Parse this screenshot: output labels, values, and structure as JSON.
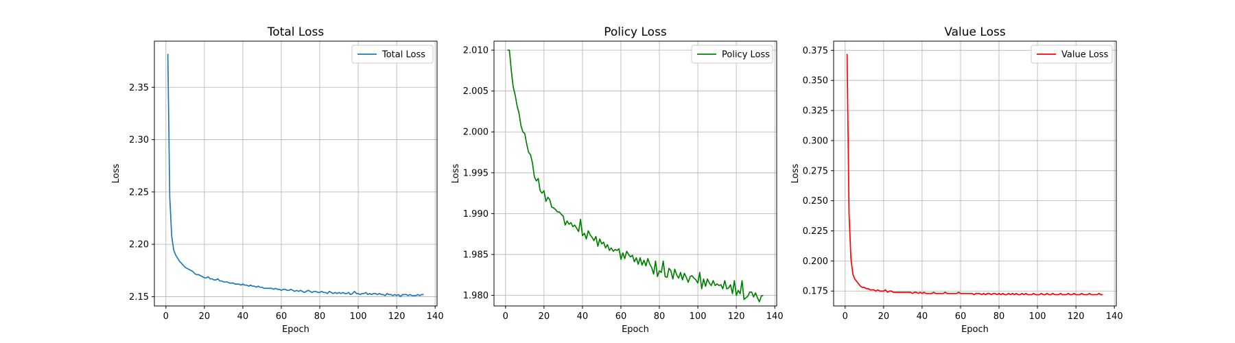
{
  "chart_data": [
    {
      "type": "line",
      "title": "Total Loss",
      "xlabel": "Epoch",
      "ylabel": "Loss",
      "xlim": [
        -6,
        141
      ],
      "ylim": [
        2.1411,
        2.3941
      ],
      "xticks": [
        0,
        20,
        40,
        60,
        80,
        100,
        120,
        140
      ],
      "yticks": [
        2.15,
        2.2,
        2.25,
        2.3,
        2.35
      ],
      "ytick_format": 2,
      "grid": true,
      "legend": "top-right",
      "series": [
        {
          "name": "Total Loss",
          "color": "#1f77b4",
          "x": [
            1,
            2,
            3,
            4,
            5,
            6,
            7,
            8,
            9,
            10,
            11,
            12,
            13,
            14,
            15,
            16,
            17,
            18,
            19,
            20,
            21,
            22,
            23,
            24,
            25,
            26,
            27,
            28,
            29,
            30,
            31,
            32,
            33,
            34,
            35,
            36,
            37,
            38,
            39,
            40,
            41,
            42,
            43,
            44,
            45,
            46,
            47,
            48,
            49,
            50,
            51,
            52,
            53,
            54,
            55,
            56,
            57,
            58,
            59,
            60,
            61,
            62,
            63,
            64,
            65,
            66,
            67,
            68,
            69,
            70,
            71,
            72,
            73,
            74,
            75,
            76,
            77,
            78,
            79,
            80,
            81,
            82,
            83,
            84,
            85,
            86,
            87,
            88,
            89,
            90,
            91,
            92,
            93,
            94,
            95,
            96,
            97,
            98,
            99,
            100,
            101,
            102,
            103,
            104,
            105,
            106,
            107,
            108,
            109,
            110,
            111,
            112,
            113,
            114,
            115,
            116,
            117,
            118,
            119,
            120,
            121,
            122,
            123,
            124,
            125,
            126,
            127,
            128,
            129,
            130,
            131,
            132,
            133,
            134
          ],
          "y": [
            2.382,
            2.245,
            2.208,
            2.195,
            2.19,
            2.187,
            2.184,
            2.182,
            2.18,
            2.178,
            2.177,
            2.176,
            2.175,
            2.174,
            2.172,
            2.171,
            2.171,
            2.17,
            2.169,
            2.168,
            2.168,
            2.169,
            2.167,
            2.167,
            2.166,
            2.166,
            2.167,
            2.165,
            2.165,
            2.164,
            2.164,
            2.164,
            2.163,
            2.163,
            2.163,
            2.162,
            2.162,
            2.162,
            2.161,
            2.162,
            2.161,
            2.161,
            2.16,
            2.161,
            2.16,
            2.16,
            2.159,
            2.16,
            2.159,
            2.159,
            2.158,
            2.158,
            2.158,
            2.158,
            2.158,
            2.157,
            2.158,
            2.157,
            2.157,
            2.156,
            2.157,
            2.157,
            2.156,
            2.156,
            2.157,
            2.156,
            2.155,
            2.156,
            2.155,
            2.156,
            2.155,
            2.154,
            2.155,
            2.156,
            2.155,
            2.154,
            2.155,
            2.155,
            2.154,
            2.154,
            2.155,
            2.154,
            2.154,
            2.153,
            2.155,
            2.154,
            2.153,
            2.154,
            2.153,
            2.154,
            2.153,
            2.154,
            2.153,
            2.153,
            2.154,
            2.152,
            2.153,
            2.155,
            2.153,
            2.153,
            2.152,
            2.153,
            2.153,
            2.154,
            2.152,
            2.153,
            2.152,
            2.153,
            2.153,
            2.152,
            2.153,
            2.152,
            2.152,
            2.151,
            2.153,
            2.152,
            2.152,
            2.151,
            2.152,
            2.151,
            2.152,
            2.15,
            2.152,
            2.152,
            2.152,
            2.151,
            2.152,
            2.151,
            2.151,
            2.151,
            2.152,
            2.151,
            2.152,
            2.152
          ]
        }
      ]
    },
    {
      "type": "line",
      "title": "Policy Loss",
      "xlabel": "Epoch",
      "ylabel": "Loss",
      "xlim": [
        -6,
        141
      ],
      "ylim": [
        1.9787,
        2.0111
      ],
      "xticks": [
        0,
        20,
        40,
        60,
        80,
        100,
        120,
        140
      ],
      "yticks": [
        1.98,
        1.985,
        1.99,
        1.995,
        2.0,
        2.005,
        2.01
      ],
      "ytick_format": 3,
      "grid": true,
      "legend": "top-right",
      "series": [
        {
          "name": "Policy Loss",
          "color": "#008000",
          "x": [
            1,
            2,
            3,
            4,
            5,
            6,
            7,
            8,
            9,
            10,
            11,
            12,
            13,
            14,
            15,
            16,
            17,
            18,
            19,
            20,
            21,
            22,
            23,
            24,
            25,
            26,
            27,
            28,
            29,
            30,
            31,
            32,
            33,
            34,
            35,
            36,
            37,
            38,
            39,
            40,
            41,
            42,
            43,
            44,
            45,
            46,
            47,
            48,
            49,
            50,
            51,
            52,
            53,
            54,
            55,
            56,
            57,
            58,
            59,
            60,
            61,
            62,
            63,
            64,
            65,
            66,
            67,
            68,
            69,
            70,
            71,
            72,
            73,
            74,
            75,
            76,
            77,
            78,
            79,
            80,
            81,
            82,
            83,
            84,
            85,
            86,
            87,
            88,
            89,
            90,
            91,
            92,
            93,
            94,
            95,
            96,
            97,
            98,
            99,
            100,
            101,
            102,
            103,
            104,
            105,
            106,
            107,
            108,
            109,
            110,
            111,
            112,
            113,
            114,
            115,
            116,
            117,
            118,
            119,
            120,
            121,
            122,
            123,
            124,
            125,
            126,
            127,
            128,
            129,
            130,
            131,
            132,
            133,
            134
          ],
          "y": [
            2.01,
            2.01,
            2.0075,
            2.0055,
            2.0045,
            2.0032,
            2.0023,
            2.0008,
            2.0,
            1.9998,
            1.9985,
            1.9975,
            1.9972,
            1.9962,
            1.9945,
            1.994,
            1.9943,
            1.9928,
            1.9925,
            1.9928,
            1.9915,
            1.992,
            1.9917,
            1.9908,
            1.9907,
            1.9905,
            1.9902,
            1.9902,
            1.9899,
            1.9897,
            1.9886,
            1.9891,
            1.9887,
            1.9889,
            1.9884,
            1.9886,
            1.9882,
            1.9878,
            1.9893,
            1.9873,
            1.9876,
            1.9869,
            1.9879,
            1.9874,
            1.9871,
            1.9867,
            1.9872,
            1.986,
            1.9869,
            1.9863,
            1.9865,
            1.9858,
            1.9862,
            1.9855,
            1.9858,
            1.9854,
            1.9856,
            1.9855,
            1.9857,
            1.9844,
            1.9852,
            1.9845,
            1.9854,
            1.985,
            1.9847,
            1.9849,
            1.9841,
            1.9846,
            1.9838,
            1.9846,
            1.9837,
            1.9843,
            1.9836,
            1.9845,
            1.9838,
            1.9834,
            1.9826,
            1.9842,
            1.9823,
            1.983,
            1.9828,
            1.9842,
            1.9823,
            1.9822,
            1.9833,
            1.983,
            1.982,
            1.9832,
            1.9825,
            1.9821,
            1.9828,
            1.9819,
            1.9827,
            1.9822,
            1.9816,
            1.9823,
            1.9824,
            1.9821,
            1.9819,
            1.9815,
            1.9828,
            1.9808,
            1.982,
            1.9811,
            1.982,
            1.9815,
            1.9812,
            1.9818,
            1.9812,
            1.9814,
            1.9812,
            1.9813,
            1.9808,
            1.9818,
            1.9808,
            1.9809,
            1.9813,
            1.9802,
            1.9818,
            1.98,
            1.9806,
            1.9802,
            1.9818,
            1.9795,
            1.9797,
            1.9799,
            1.9804,
            1.9804,
            1.9798,
            1.9803,
            1.9797,
            1.9792,
            1.9799,
            1.98
          ]
        }
      ]
    },
    {
      "type": "line",
      "title": "Value Loss",
      "xlabel": "Epoch",
      "ylabel": "Loss",
      "xlim": [
        -6,
        141
      ],
      "ylim": [
        0.1626,
        0.3826
      ],
      "xticks": [
        0,
        20,
        40,
        60,
        80,
        100,
        120,
        140
      ],
      "yticks": [
        0.175,
        0.2,
        0.225,
        0.25,
        0.275,
        0.3,
        0.325,
        0.35,
        0.375
      ],
      "ytick_format": 3,
      "grid": true,
      "legend": "top-right",
      "series": [
        {
          "name": "Value Loss",
          "color": "#ff0000",
          "x": [
            1,
            2,
            3,
            4,
            5,
            6,
            7,
            8,
            9,
            10,
            11,
            12,
            13,
            14,
            15,
            16,
            17,
            18,
            19,
            20,
            21,
            22,
            23,
            24,
            25,
            26,
            27,
            28,
            29,
            30,
            31,
            32,
            33,
            34,
            35,
            36,
            37,
            38,
            39,
            40,
            41,
            42,
            43,
            44,
            45,
            46,
            47,
            48,
            49,
            50,
            51,
            52,
            53,
            54,
            55,
            56,
            57,
            58,
            59,
            60,
            61,
            62,
            63,
            64,
            65,
            66,
            67,
            68,
            69,
            70,
            71,
            72,
            73,
            74,
            75,
            76,
            77,
            78,
            79,
            80,
            81,
            82,
            83,
            84,
            85,
            86,
            87,
            88,
            89,
            90,
            91,
            92,
            93,
            94,
            95,
            96,
            97,
            98,
            99,
            100,
            101,
            102,
            103,
            104,
            105,
            106,
            107,
            108,
            109,
            110,
            111,
            112,
            113,
            114,
            115,
            116,
            117,
            118,
            119,
            120,
            121,
            122,
            123,
            124,
            125,
            126,
            127,
            128,
            129,
            130,
            131,
            132,
            133,
            134
          ],
          "y": [
            0.372,
            0.24,
            0.202,
            0.189,
            0.185,
            0.183,
            0.181,
            0.179,
            0.178,
            0.178,
            0.177,
            0.177,
            0.176,
            0.176,
            0.176,
            0.175,
            0.176,
            0.175,
            0.175,
            0.175,
            0.176,
            0.174,
            0.175,
            0.175,
            0.174,
            0.174,
            0.174,
            0.174,
            0.174,
            0.174,
            0.174,
            0.174,
            0.174,
            0.174,
            0.173,
            0.174,
            0.174,
            0.173,
            0.174,
            0.173,
            0.174,
            0.173,
            0.173,
            0.173,
            0.173,
            0.174,
            0.173,
            0.173,
            0.173,
            0.173,
            0.173,
            0.174,
            0.173,
            0.173,
            0.173,
            0.173,
            0.173,
            0.173,
            0.174,
            0.173,
            0.173,
            0.173,
            0.173,
            0.173,
            0.173,
            0.173,
            0.172,
            0.173,
            0.173,
            0.173,
            0.172,
            0.173,
            0.172,
            0.173,
            0.173,
            0.172,
            0.173,
            0.173,
            0.172,
            0.173,
            0.172,
            0.173,
            0.172,
            0.172,
            0.173,
            0.172,
            0.173,
            0.172,
            0.173,
            0.172,
            0.172,
            0.173,
            0.172,
            0.173,
            0.172,
            0.172,
            0.172,
            0.173,
            0.172,
            0.172,
            0.172,
            0.173,
            0.172,
            0.172,
            0.173,
            0.172,
            0.172,
            0.173,
            0.172,
            0.172,
            0.172,
            0.173,
            0.172,
            0.172,
            0.172,
            0.173,
            0.172,
            0.172,
            0.173,
            0.172,
            0.172,
            0.172,
            0.173,
            0.172,
            0.172,
            0.172,
            0.173,
            0.172,
            0.172,
            0.172,
            0.172,
            0.173,
            0.172,
            0.172
          ]
        }
      ]
    }
  ]
}
